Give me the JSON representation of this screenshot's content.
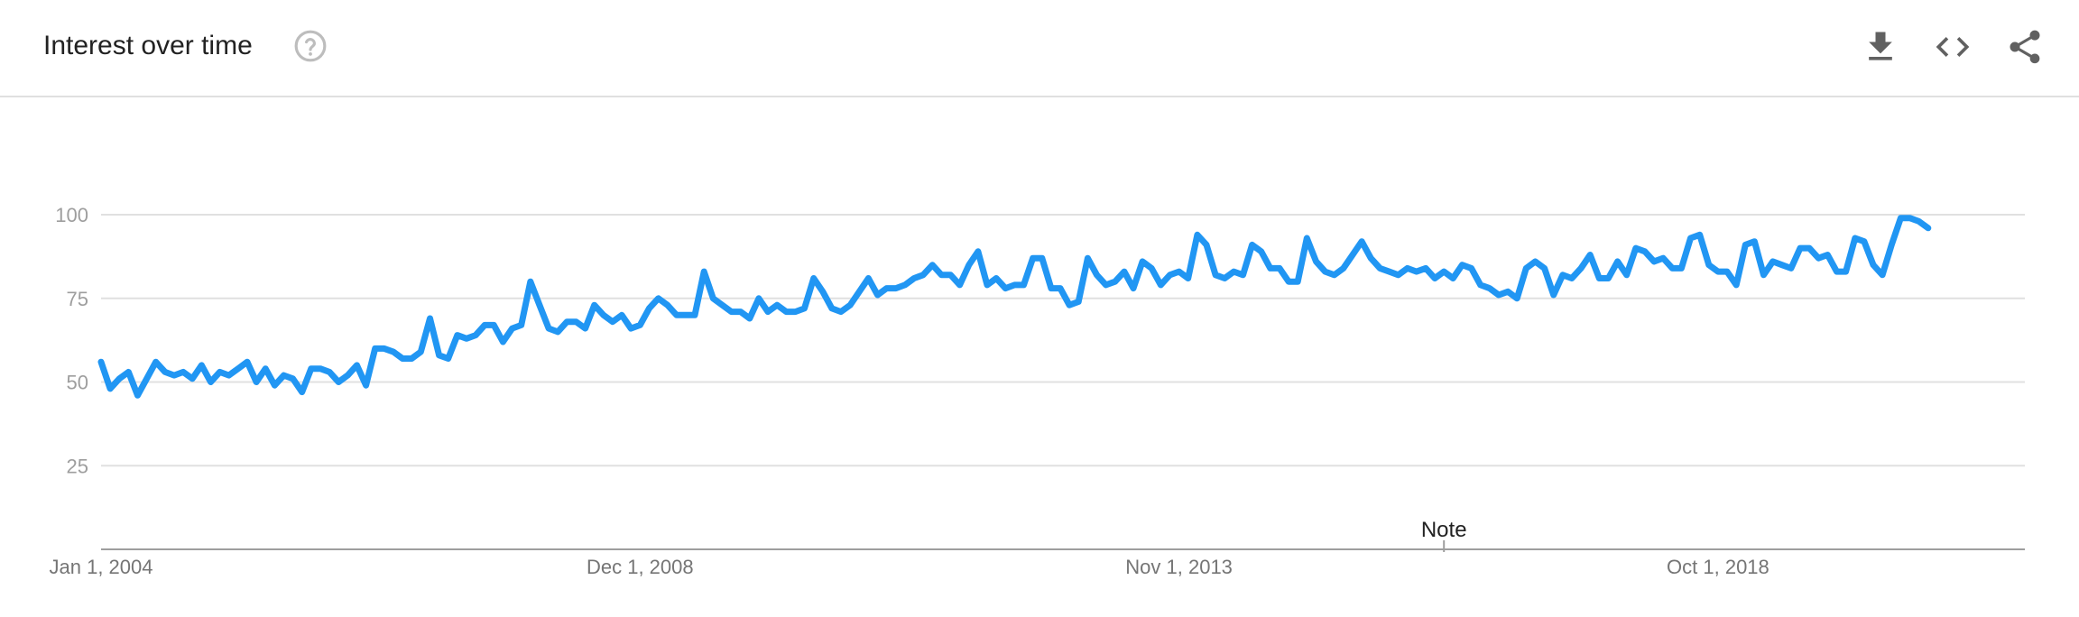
{
  "header": {
    "title": "Interest over time",
    "icons": {
      "help": "help-circle-icon",
      "download": "download-icon",
      "embed": "code-embed-icon",
      "share": "share-icon"
    }
  },
  "colors": {
    "line": "#2196F3",
    "grid": "#e0e0e0",
    "axis": "#9e9e9e",
    "icon": "#616161",
    "help_icon": "#bdbdbd"
  },
  "chart_data": {
    "type": "line",
    "title": "",
    "xlabel": "",
    "ylabel": "",
    "ylim": [
      0,
      100
    ],
    "yticks": [
      25,
      50,
      75,
      100
    ],
    "x_tick_labels": [
      "Jan 1, 2004",
      "Dec 1, 2008",
      "Nov 1, 2013",
      "Oct 1, 2018"
    ],
    "x_range": [
      "2004-01",
      "2021-07"
    ],
    "grid": true,
    "annotations": [
      {
        "label": "Note",
        "x": "2016-04"
      }
    ],
    "series": [
      {
        "start": "2004-01",
        "frequency": "monthly",
        "values": [
          56,
          48,
          51,
          53,
          46,
          51,
          56,
          53,
          52,
          53,
          51,
          55,
          50,
          53,
          52,
          54,
          56,
          50,
          54,
          49,
          52,
          51,
          47,
          54,
          54,
          53,
          50,
          52,
          55,
          49,
          60,
          60,
          59,
          57,
          57,
          59,
          69,
          58,
          57,
          64,
          63,
          64,
          67,
          67,
          62,
          66,
          67,
          80,
          73,
          66,
          65,
          68,
          68,
          66,
          73,
          70,
          68,
          70,
          66,
          67,
          72,
          75,
          73,
          70,
          70,
          70,
          83,
          75,
          73,
          71,
          71,
          69,
          75,
          71,
          73,
          71,
          71,
          72,
          81,
          77,
          72,
          71,
          73,
          77,
          81,
          76,
          78,
          78,
          79,
          81,
          82,
          85,
          82,
          82,
          79,
          85,
          89,
          79,
          81,
          78,
          79,
          79,
          87,
          87,
          78,
          78,
          73,
          74,
          87,
          82,
          79,
          80,
          83,
          78,
          86,
          84,
          79,
          82,
          83,
          81,
          94,
          91,
          82,
          81,
          83,
          82,
          91,
          89,
          84,
          84,
          80,
          80,
          93,
          86,
          83,
          82,
          84,
          88,
          92,
          87,
          84,
          83,
          82,
          84,
          83,
          84,
          81,
          83,
          81,
          85,
          84,
          79,
          78,
          76,
          77,
          75,
          84,
          86,
          84,
          76,
          82,
          81,
          84,
          88,
          81,
          81,
          86,
          82,
          90,
          89,
          86,
          87,
          84,
          84,
          93,
          94,
          85,
          83,
          83,
          79,
          91,
          92,
          82,
          86,
          85,
          84,
          90,
          90,
          87,
          88,
          83,
          83,
          93,
          92,
          85,
          82,
          91,
          99,
          99,
          98,
          96
        ]
      }
    ]
  }
}
